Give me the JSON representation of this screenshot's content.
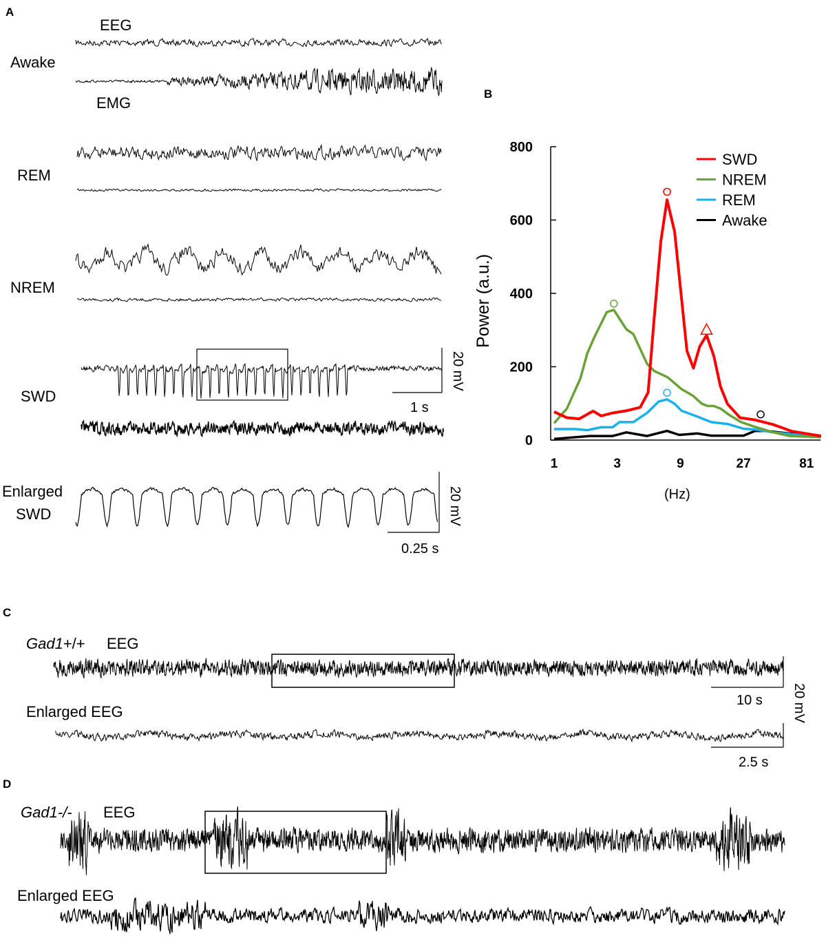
{
  "panel_labels": {
    "a": "A",
    "b": "B",
    "c": "C",
    "d": "D"
  },
  "panel_a": {
    "eeg_label": "EEG",
    "emg_label": "EMG",
    "states": [
      "Awake",
      "REM",
      "NREM",
      "SWD"
    ],
    "enlarged_label_1": "Enlarged",
    "enlarged_label_2": "SWD",
    "swd_scale_v": "20 mV",
    "swd_scale_h": "1 s",
    "enl_scale_v": "20 mV",
    "enl_scale_h": "0.25 s"
  },
  "panel_c": {
    "genotype_gene": "Gad1",
    "genotype_suffix": "+/+",
    "eeg_label": "EEG",
    "enlarged_label": "Enlarged EEG",
    "scale_v": "20 mV",
    "scale_h_top": "10 s",
    "scale_h_bottom": "2.5 s"
  },
  "panel_d": {
    "genotype_gene": "Gad1",
    "genotype_suffix": "-/-",
    "eeg_label": "EEG",
    "enlarged_label": "Enlarged EEG"
  },
  "chart_data": {
    "type": "line",
    "title": "",
    "xlabel": "(Hz)",
    "ylabel": "Power (a.u.)",
    "xscale": "log3",
    "xticks": [
      1,
      3,
      9,
      27,
      81
    ],
    "xlim": [
      1,
      105
    ],
    "yticks": [
      0,
      200,
      400,
      600,
      800
    ],
    "ylim": [
      0,
      800
    ],
    "grid": false,
    "legend": "top-right",
    "series": [
      {
        "name": "SWD",
        "color": "#ff0000",
        "x": [
          1.0,
          1.25,
          1.55,
          1.97,
          2.27,
          2.77,
          3.52,
          4.47,
          5.14,
          5.68,
          6.41,
          7.14,
          8.15,
          10.1,
          11.3,
          12.6,
          14.2,
          16.1,
          18.1,
          20.4,
          25.4,
          33,
          45.5,
          62.6,
          104
        ],
        "y": [
          77,
          61,
          58,
          79,
          66,
          74,
          80,
          89,
          130,
          324,
          543,
          655,
          568,
          243,
          196,
          255,
          286,
          230,
          146,
          99,
          61,
          55,
          42,
          24,
          11
        ]
      },
      {
        "name": "NREM",
        "color": "#6aa236",
        "x": [
          1.0,
          1.25,
          1.58,
          1.78,
          2.01,
          2.5,
          2.83,
          3.52,
          3.97,
          5.04,
          5.68,
          7.23,
          9.18,
          11.2,
          13.1,
          14.5,
          16.1,
          18.1,
          21.2,
          25.9,
          33,
          45.5,
          60,
          104
        ],
        "y": [
          46,
          86,
          168,
          236,
          280,
          349,
          355,
          302,
          289,
          208,
          189,
          171,
          139,
          121,
          99,
          93,
          93,
          86,
          68,
          49,
          36,
          21,
          11,
          8
        ]
      },
      {
        "name": "REM",
        "color": "#1ab0ec",
        "x": [
          1.0,
          1.46,
          1.78,
          2.27,
          2.77,
          3.12,
          3.97,
          5.04,
          6.16,
          7.14,
          8.15,
          9.18,
          12.1,
          15.4,
          20.4,
          27,
          33,
          45.5,
          104
        ],
        "y": [
          30,
          30,
          27,
          35,
          35,
          49,
          49,
          74,
          105,
          111,
          99,
          80,
          64,
          49,
          44,
          31,
          29,
          21,
          8
        ]
      },
      {
        "name": "Awake",
        "color": "#000000",
        "x": [
          1.0,
          1.86,
          2.77,
          3.52,
          5.04,
          7.14,
          8.83,
          12.1,
          15.4,
          27,
          33,
          40.3,
          60,
          104
        ],
        "y": [
          3,
          11,
          11,
          21,
          11,
          25,
          14,
          18,
          12,
          12,
          25,
          25,
          18,
          11
        ]
      }
    ],
    "markers": [
      {
        "series": "SWD",
        "shape": "circle",
        "x": 7.14,
        "y": 677
      },
      {
        "series": "SWD",
        "shape": "triangle",
        "x": 14.2,
        "y": 300
      },
      {
        "series": "NREM",
        "shape": "circle",
        "x": 2.83,
        "y": 372
      },
      {
        "series": "REM",
        "shape": "circle",
        "x": 7.14,
        "y": 129
      },
      {
        "series": "Awake",
        "shape": "circle",
        "x": 36.4,
        "y": 70
      }
    ]
  }
}
